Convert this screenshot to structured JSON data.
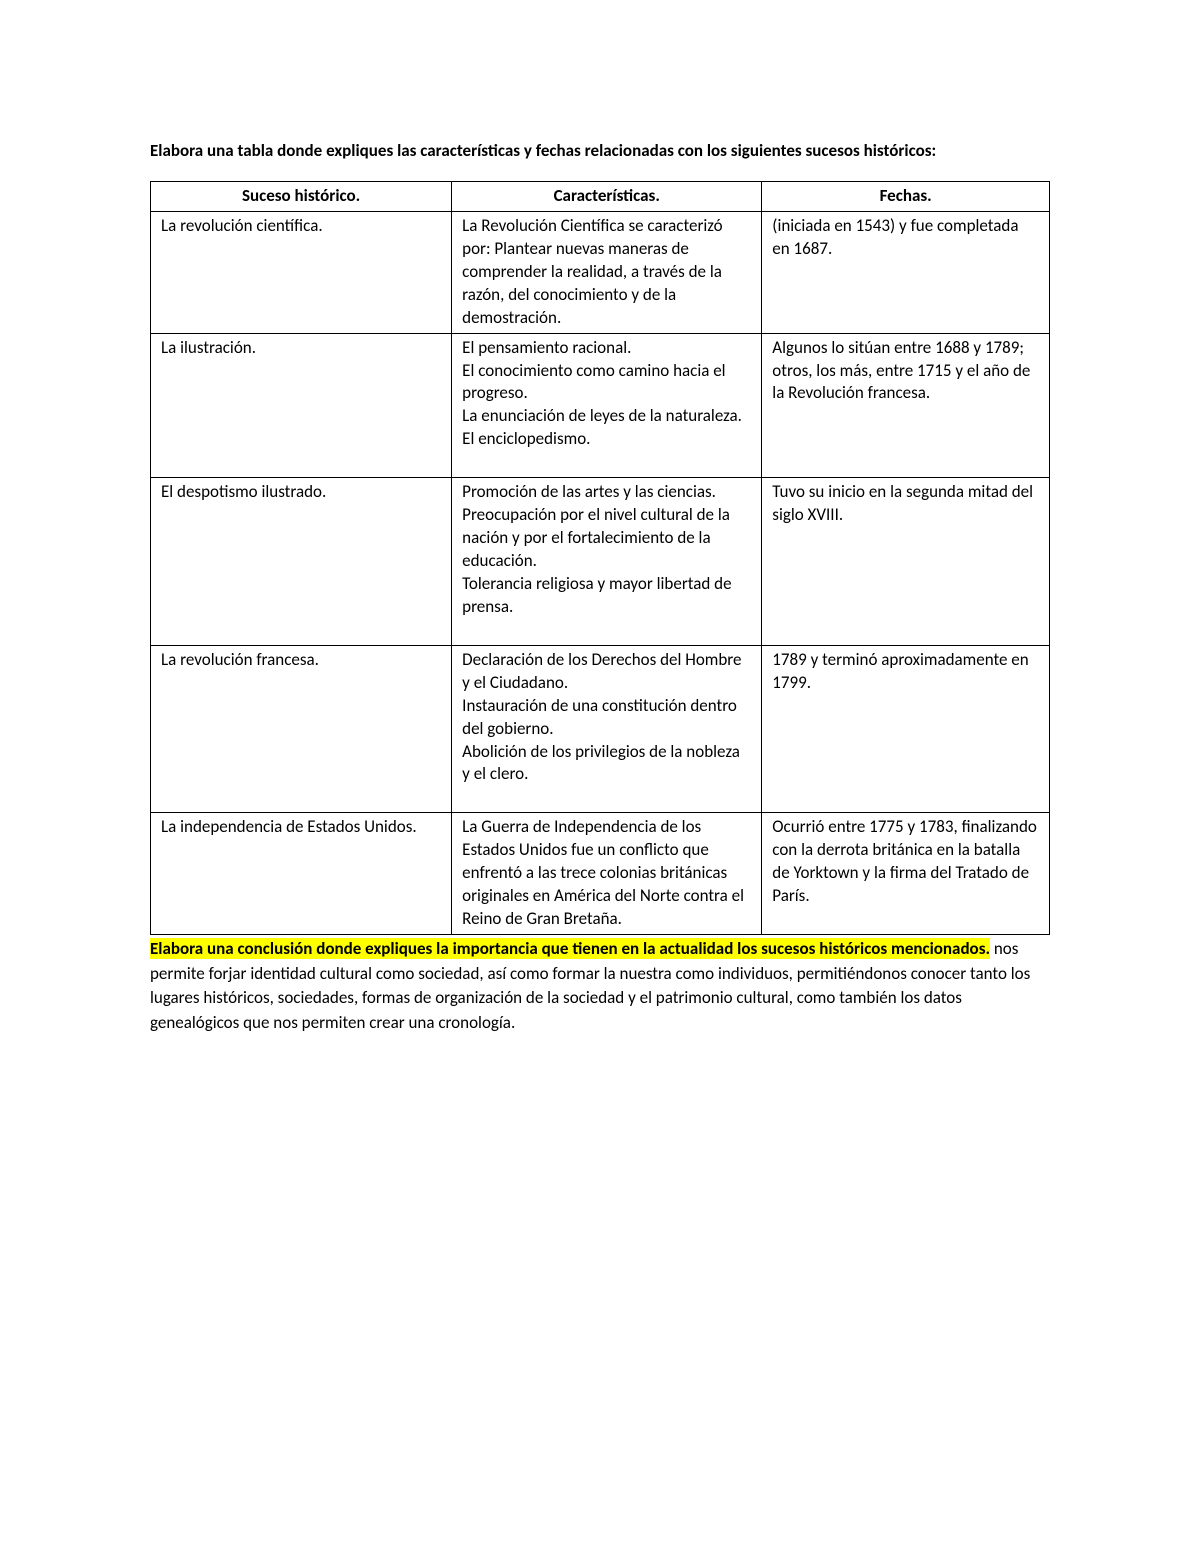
{
  "instruction": "Elabora una tabla donde expliques las características y fechas relacionadas con los siguientes sucesos históricos:",
  "table": {
    "headers": {
      "c1": "Suceso histórico.",
      "c2": "Características.",
      "c3": "Fechas."
    },
    "rows": [
      {
        "event": "La revolución científica.",
        "char": "La Revolución Científica se caracterizó por: Plantear nuevas maneras de comprender la realidad, a través de la razón, del conocimiento y de la demostración.",
        "dates": "(iniciada en 1543) y fue completada en 1687."
      },
      {
        "event": "La ilustración.",
        "char_lines": [
          "El pensamiento racional.",
          "El conocimiento como camino hacia el progreso.",
          "La enunciación de leyes de la naturaleza.",
          "El enciclopedismo."
        ],
        "dates": "Algunos lo sitúan entre 1688 y 1789; otros, los más, entre 1715 y el año de la Revolución francesa."
      },
      {
        "event": "El despotismo ilustrado.",
        "char_lines": [
          "Promoción de las artes y las ciencias.",
          "Preocupación por el nivel cultural de la nación y por el fortalecimiento de la educación.",
          "Tolerancia religiosa y mayor libertad de prensa."
        ],
        "dates": "Tuvo su inicio en la segunda mitad del siglo XVIII."
      },
      {
        "event": "La revolución francesa.",
        "char_lines": [
          "Declaración de los Derechos del Hombre y el Ciudadano.",
          "Instauración de una constitución dentro del gobierno.",
          "Abolición de los privilegios de la nobleza y el clero."
        ],
        "dates": "1789 y terminó aproximadamente en 1799."
      },
      {
        "event": "La independencia de Estados Unidos.",
        "char": "La Guerra de Independencia de los Estados Unidos fue un conflicto que enfrentó a las trece colonias británicas originales en América del Norte contra el Reino de Gran Bretaña.",
        "dates": "Ocurrió entre 1775 y 1783, finalizando con la derrota británica en la batalla de Yorktown y la firma del Tratado de París."
      }
    ]
  },
  "conclusion": {
    "highlight": "Elabora una conclusión donde expliques la importancia que tienen en la actualidad los sucesos históricos mencionados.",
    "rest": " nos permite forjar identidad cultural como sociedad, así como formar la nuestra como individuos, permitiéndonos conocer tanto los lugares históricos, sociedades, formas de organización de la sociedad y el patrimonio cultural, como también los datos genealógicos que nos permiten crear una cronología."
  }
}
